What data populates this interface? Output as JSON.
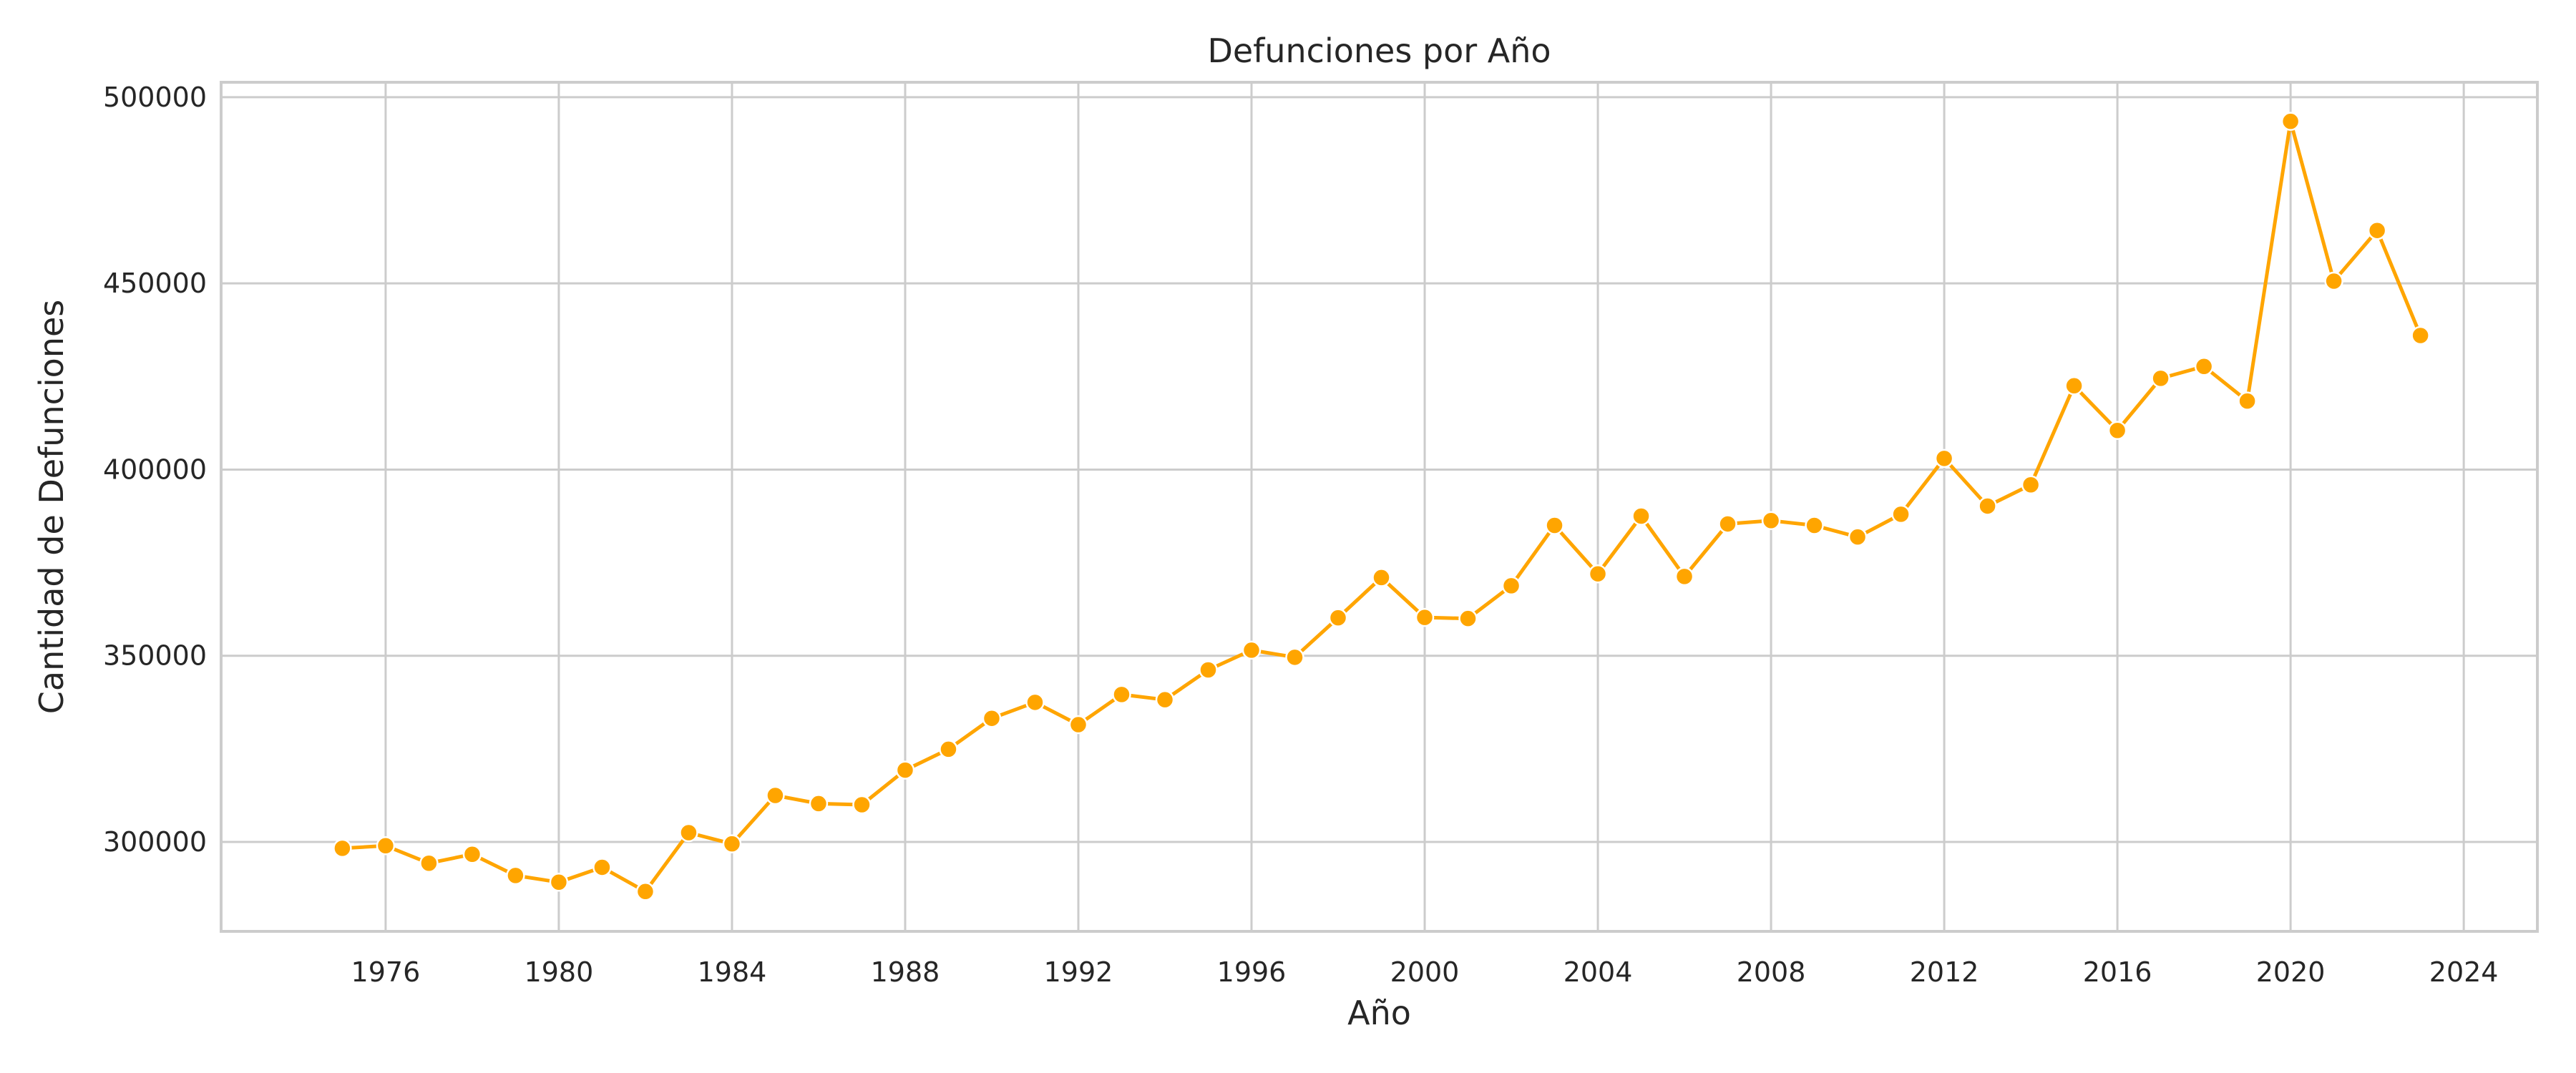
{
  "chart_data": {
    "type": "line",
    "title": "Defunciones por Año",
    "xlabel": "Año",
    "ylabel": "Cantidad de Defunciones",
    "xlim": [
      1972.2,
      2025.7
    ],
    "ylim": [
      276000,
      504000
    ],
    "x_ticks": [
      1976,
      1980,
      1984,
      1988,
      1992,
      1996,
      2000,
      2004,
      2008,
      2012,
      2016,
      2020,
      2024
    ],
    "y_ticks": [
      300000,
      350000,
      400000,
      450000,
      500000
    ],
    "grid": true,
    "legend": false,
    "color": "#FFA500",
    "series": [
      {
        "x": [
          1975,
          1976,
          1977,
          1978,
          1979,
          1980,
          1981,
          1982,
          1983,
          1984,
          1985,
          1986,
          1987,
          1988,
          1989,
          1990,
          1991,
          1992,
          1993,
          1994,
          1995,
          1996,
          1997,
          1998,
          1999,
          2000,
          2001,
          2002,
          2003,
          2004,
          2005,
          2006,
          2007,
          2008,
          2009,
          2010,
          2011,
          2012,
          2013,
          2014,
          2015,
          2016,
          2017,
          2018,
          2019,
          2020,
          2021,
          2022,
          2023
        ],
        "values": [
          298300,
          299000,
          294300,
          296700,
          291000,
          289200,
          293200,
          286700,
          302500,
          299500,
          312500,
          310300,
          310000,
          319300,
          324900,
          333200,
          337500,
          331500,
          339600,
          338200,
          346200,
          351500,
          349600,
          360200,
          371000,
          360300,
          360000,
          368800,
          385000,
          372000,
          387500,
          371300,
          385400,
          386300,
          385000,
          381900,
          388000,
          403000,
          390200,
          395900,
          422500,
          410500,
          424500,
          427700,
          418400,
          493500,
          450600,
          464200,
          436000
        ]
      }
    ]
  }
}
